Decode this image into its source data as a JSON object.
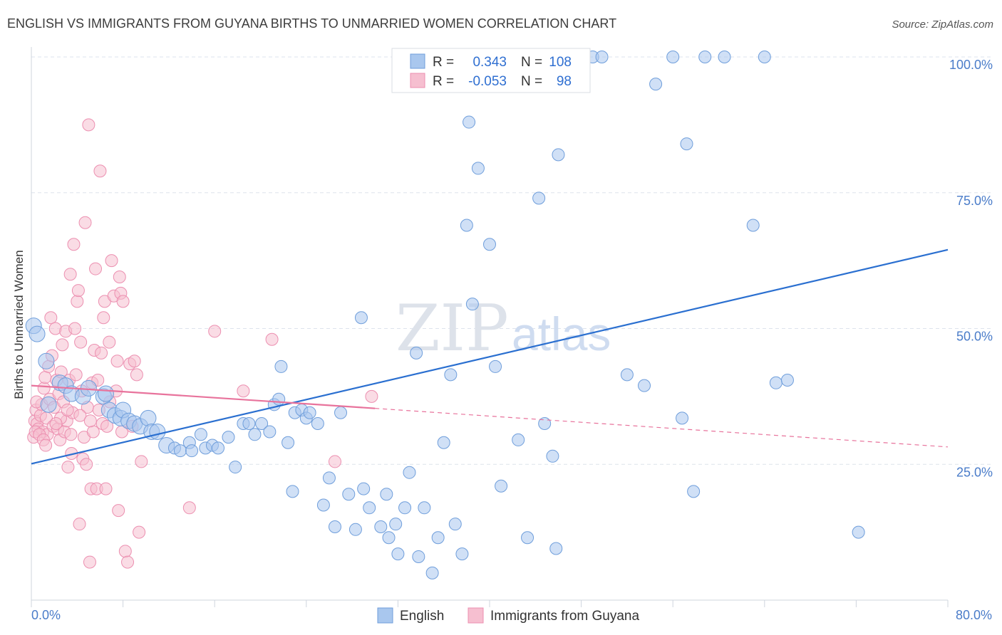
{
  "title": "ENGLISH VS IMMIGRANTS FROM GUYANA BIRTHS TO UNMARRIED WOMEN CORRELATION CHART",
  "source": "Source: ZipAtlas.com",
  "watermark": {
    "part1": "ZIP",
    "part2": "atlas"
  },
  "stats": {
    "row1": {
      "r_label": "R =",
      "r_value": "0.343",
      "n_label": "N =",
      "n_value": "108"
    },
    "row2": {
      "r_label": "R =",
      "r_value": "-0.053",
      "n_label": "N =",
      "n_value": "98"
    }
  },
  "legend": {
    "english": "English",
    "guyana": "Immigrants from Guyana"
  },
  "colors": {
    "english_fill": "#a9c7ee",
    "english_stroke": "#6f9edb",
    "english_line": "#2a6fd0",
    "guyana_fill": "#f6bfd0",
    "guyana_stroke": "#ec8fb0",
    "guyana_line": "#e8739c",
    "grid": "#dde3ec",
    "tick_text": "#4a7cc9"
  },
  "chart_data": {
    "type": "scatter",
    "xlabel": "",
    "ylabel": "Births to Unmarried Women",
    "xlim": [
      0,
      80
    ],
    "ylim": [
      0,
      100
    ],
    "x_tick_labels": {
      "min": "0.0%",
      "max": "80.0%"
    },
    "y_ticks": [
      {
        "value": 25,
        "label": "25.0%"
      },
      {
        "value": 50,
        "label": "50.0%"
      },
      {
        "value": 75,
        "label": "75.0%"
      },
      {
        "value": 100,
        "label": "100.0%"
      }
    ],
    "series": [
      {
        "name": "English",
        "trend": {
          "x0": 0,
          "y0": 25.1,
          "x1": 80,
          "y1": 64.5
        },
        "points": [
          [
            0.2,
            50.5
          ],
          [
            0.5,
            49
          ],
          [
            1.3,
            44
          ],
          [
            1.5,
            36
          ],
          [
            2.5,
            40
          ],
          [
            3,
            39.5
          ],
          [
            3.5,
            38
          ],
          [
            4.5,
            37.5
          ],
          [
            5,
            39
          ],
          [
            6.3,
            37.5
          ],
          [
            6.5,
            38
          ],
          [
            6.8,
            35
          ],
          [
            7.3,
            34
          ],
          [
            7.8,
            33.5
          ],
          [
            8,
            35
          ],
          [
            8.5,
            33
          ],
          [
            9,
            32.5
          ],
          [
            9.5,
            32
          ],
          [
            10.2,
            33.5
          ],
          [
            10.5,
            31
          ],
          [
            11,
            31
          ],
          [
            11.8,
            28.5
          ],
          [
            12.5,
            28
          ],
          [
            13,
            27.5
          ],
          [
            13.8,
            29
          ],
          [
            14,
            27.5
          ],
          [
            14.8,
            30.5
          ],
          [
            15.2,
            28
          ],
          [
            15.8,
            28.5
          ],
          [
            16.3,
            28
          ],
          [
            17.2,
            30
          ],
          [
            17.8,
            24.5
          ],
          [
            18.5,
            32.5
          ],
          [
            19,
            32.5
          ],
          [
            19.5,
            30.5
          ],
          [
            20.1,
            32.5
          ],
          [
            20.8,
            31
          ],
          [
            21.2,
            36
          ],
          [
            21.6,
            37
          ],
          [
            21.8,
            43
          ],
          [
            22.4,
            29
          ],
          [
            22.8,
            20
          ],
          [
            23,
            34.5
          ],
          [
            23.6,
            35
          ],
          [
            24,
            33.5
          ],
          [
            24.3,
            34.5
          ],
          [
            25,
            32.5
          ],
          [
            25.5,
            17.5
          ],
          [
            26,
            22.5
          ],
          [
            26.5,
            13.5
          ],
          [
            27,
            34.5
          ],
          [
            27.7,
            19.5
          ],
          [
            28.3,
            13
          ],
          [
            28.8,
            52
          ],
          [
            29,
            20.5
          ],
          [
            29.5,
            17
          ],
          [
            30.5,
            13.5
          ],
          [
            31,
            19.5
          ],
          [
            31.2,
            11.5
          ],
          [
            31.8,
            14
          ],
          [
            32,
            8.5
          ],
          [
            32.6,
            17
          ],
          [
            33,
            23.5
          ],
          [
            33.6,
            45.5
          ],
          [
            33.8,
            8
          ],
          [
            34.3,
            17
          ],
          [
            35,
            5
          ],
          [
            35.5,
            11.5
          ],
          [
            36,
            29
          ],
          [
            36.6,
            41.5
          ],
          [
            37,
            14
          ],
          [
            37.6,
            8.5
          ],
          [
            38,
            69
          ],
          [
            38.2,
            88
          ],
          [
            38.5,
            54.5
          ],
          [
            39,
            79.5
          ],
          [
            40,
            65.5
          ],
          [
            40.5,
            43
          ],
          [
            41,
            21
          ],
          [
            42.5,
            29.5
          ],
          [
            43.3,
            11.5
          ],
          [
            44,
            100
          ],
          [
            44.3,
            74
          ],
          [
            44.8,
            32.5
          ],
          [
            45.5,
            26.5
          ],
          [
            46,
            82
          ],
          [
            45.8,
            9.5
          ],
          [
            47.5,
            100
          ],
          [
            49,
            100
          ],
          [
            49.8,
            100
          ],
          [
            52,
            41.5
          ],
          [
            53.5,
            39.5
          ],
          [
            54.5,
            95
          ],
          [
            56,
            100
          ],
          [
            56.8,
            33.5
          ],
          [
            57.2,
            84
          ],
          [
            57.8,
            20
          ],
          [
            58.8,
            100
          ],
          [
            60.5,
            100
          ],
          [
            63,
            69
          ],
          [
            64,
            100
          ],
          [
            65,
            40
          ],
          [
            66,
            40.5
          ],
          [
            72.2,
            12.5
          ]
        ]
      },
      {
        "name": "Immigrants from Guyana",
        "trend_solid": {
          "x0": 0,
          "y0": 39.5,
          "x1": 30,
          "y1": 35.3
        },
        "trend_dashed": {
          "x0": 30,
          "y0": 35.3,
          "x1": 80,
          "y1": 28.2
        },
        "points": [
          [
            0.3,
            33
          ],
          [
            0.4,
            35
          ],
          [
            0.5,
            32.5
          ],
          [
            0.6,
            31.5
          ],
          [
            0.8,
            34
          ],
          [
            0.9,
            36
          ],
          [
            1,
            31
          ],
          [
            1.1,
            39
          ],
          [
            1.2,
            41
          ],
          [
            1.3,
            33.5
          ],
          [
            1.4,
            30.5
          ],
          [
            1.5,
            43
          ],
          [
            1.6,
            37
          ],
          [
            1.7,
            52
          ],
          [
            1.8,
            45
          ],
          [
            1.9,
            32
          ],
          [
            2,
            35.5
          ],
          [
            2.1,
            50
          ],
          [
            2.2,
            40.5
          ],
          [
            2.3,
            31.5
          ],
          [
            2.4,
            38
          ],
          [
            2.5,
            29.5
          ],
          [
            2.6,
            42
          ],
          [
            2.7,
            47
          ],
          [
            2.8,
            36.5
          ],
          [
            2.9,
            31
          ],
          [
            3,
            49.5
          ],
          [
            3.1,
            33
          ],
          [
            3.2,
            24.5
          ],
          [
            3.3,
            40.5
          ],
          [
            3.4,
            60
          ],
          [
            3.5,
            27
          ],
          [
            3.6,
            34.5
          ],
          [
            3.7,
            65.5
          ],
          [
            3.8,
            50
          ],
          [
            3.9,
            41.5
          ],
          [
            4,
            55
          ],
          [
            4.1,
            57
          ],
          [
            4.2,
            14
          ],
          [
            4.3,
            47.5
          ],
          [
            4.4,
            38.5
          ],
          [
            4.5,
            26
          ],
          [
            4.6,
            30
          ],
          [
            4.7,
            69.5
          ],
          [
            4.8,
            25
          ],
          [
            4.9,
            35.5
          ],
          [
            5,
            87.5
          ],
          [
            5.1,
            7
          ],
          [
            5.2,
            20.5
          ],
          [
            5.3,
            40
          ],
          [
            5.4,
            31
          ],
          [
            5.5,
            46
          ],
          [
            5.6,
            61
          ],
          [
            5.7,
            20.5
          ],
          [
            5.8,
            40.5
          ],
          [
            5.9,
            35
          ],
          [
            6,
            79
          ],
          [
            6.1,
            45.5
          ],
          [
            6.2,
            32.5
          ],
          [
            6.3,
            52
          ],
          [
            6.4,
            55
          ],
          [
            6.5,
            20.5
          ],
          [
            6.6,
            32
          ],
          [
            6.8,
            47.5
          ],
          [
            7,
            62.5
          ],
          [
            7.2,
            56
          ],
          [
            7.4,
            38.5
          ],
          [
            7.5,
            44
          ],
          [
            7.6,
            16.5
          ],
          [
            7.7,
            59.5
          ],
          [
            7.8,
            56.5
          ],
          [
            7.9,
            31
          ],
          [
            8,
            55
          ],
          [
            8.2,
            9
          ],
          [
            8.4,
            7
          ],
          [
            8.6,
            43.5
          ],
          [
            8.8,
            32
          ],
          [
            9,
            44
          ],
          [
            9.2,
            41.5
          ],
          [
            9.4,
            12.5
          ],
          [
            9.6,
            25.5
          ],
          [
            13.8,
            17
          ],
          [
            16,
            49.5
          ],
          [
            18.5,
            38.5
          ],
          [
            21,
            48
          ],
          [
            26.5,
            25.5
          ],
          [
            29.7,
            37.5
          ],
          [
            0.2,
            30
          ],
          [
            0.35,
            31
          ],
          [
            0.7,
            30.5
          ],
          [
            1.05,
            29.5
          ],
          [
            2.55,
            33.5
          ],
          [
            3.15,
            35
          ],
          [
            4.25,
            34
          ],
          [
            5.15,
            33
          ],
          [
            6.85,
            36.5
          ],
          [
            0.45,
            36.5
          ],
          [
            1.25,
            28.5
          ],
          [
            2.15,
            32.5
          ],
          [
            3.45,
            30.5
          ]
        ]
      }
    ]
  }
}
